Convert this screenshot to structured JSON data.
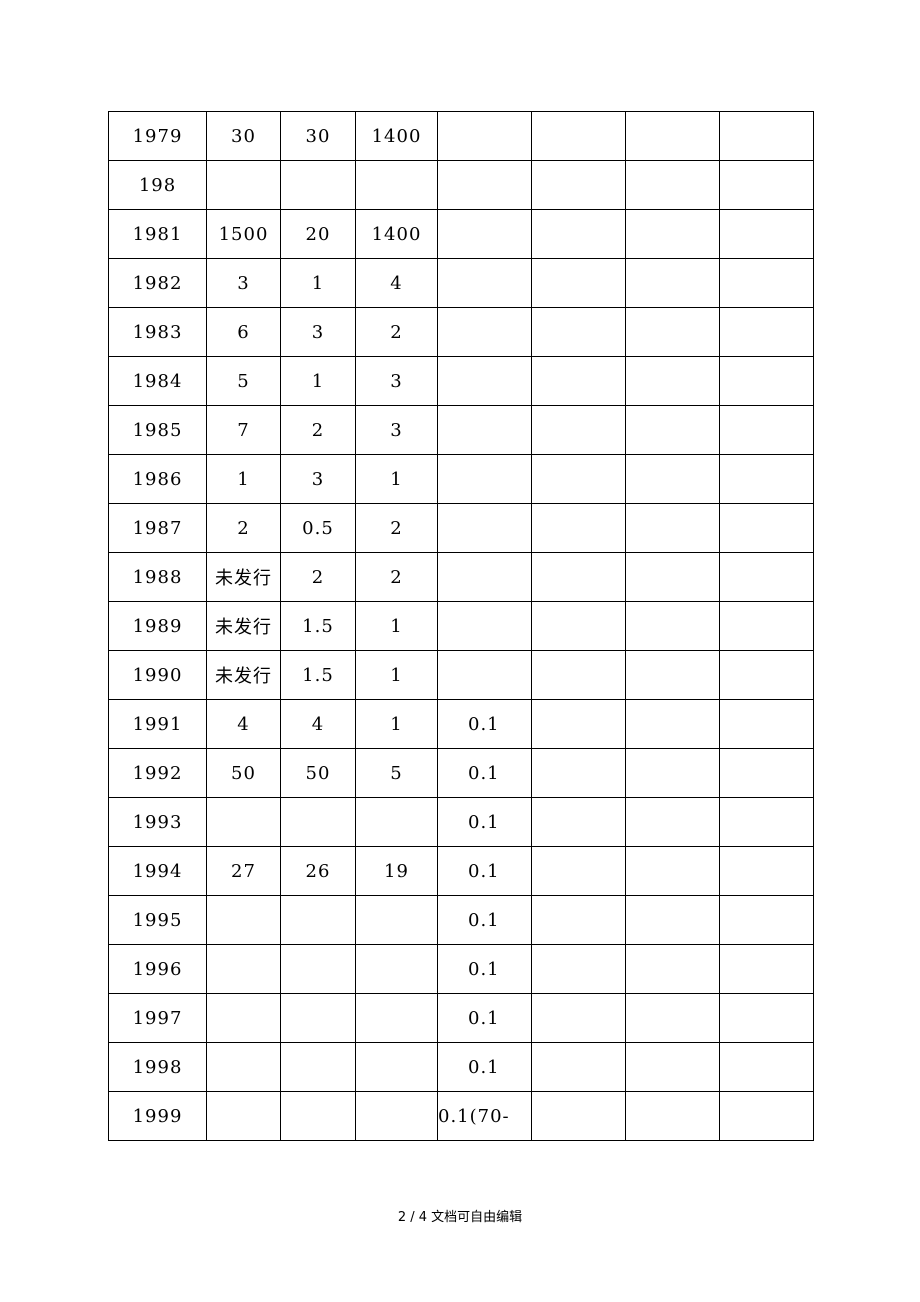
{
  "table": {
    "rows": [
      [
        "1979",
        "30",
        "30",
        "1400",
        "",
        "",
        "",
        ""
      ],
      [
        "198",
        "",
        "",
        "",
        "",
        "",
        "",
        ""
      ],
      [
        "1981",
        "1500",
        "20",
        "1400",
        "",
        "",
        "",
        ""
      ],
      [
        "1982",
        "3",
        "1",
        "4",
        "",
        "",
        "",
        ""
      ],
      [
        "1983",
        "6",
        "3",
        "2",
        "",
        "",
        "",
        ""
      ],
      [
        "1984",
        "5",
        "1",
        "3",
        "",
        "",
        "",
        ""
      ],
      [
        "1985",
        "7",
        "2",
        "3",
        "",
        "",
        "",
        ""
      ],
      [
        "1986",
        "1",
        "3",
        "1",
        "",
        "",
        "",
        ""
      ],
      [
        "1987",
        "2",
        "0.5",
        "2",
        "",
        "",
        "",
        ""
      ],
      [
        "1988",
        "未发行",
        "2",
        "2",
        "",
        "",
        "",
        ""
      ],
      [
        "1989",
        "未发行",
        "1.5",
        "1",
        "",
        "",
        "",
        ""
      ],
      [
        "1990",
        "未发行",
        "1.5",
        "1",
        "",
        "",
        "",
        ""
      ],
      [
        "1991",
        "4",
        "4",
        "1",
        "0.1",
        "",
        "",
        ""
      ],
      [
        "1992",
        "50",
        "50",
        "5",
        "0.1",
        "",
        "",
        ""
      ],
      [
        "1993",
        "",
        "",
        "",
        "0.1",
        "",
        "",
        ""
      ],
      [
        "1994",
        "27",
        "26",
        "19",
        "0.1",
        "",
        "",
        ""
      ],
      [
        "1995",
        "",
        "",
        "",
        "0.1",
        "",
        "",
        ""
      ],
      [
        "1996",
        "",
        "",
        "",
        "0.1",
        "",
        "",
        ""
      ],
      [
        "1997",
        "",
        "",
        "",
        "0.1",
        "",
        "",
        ""
      ],
      [
        "1998",
        "",
        "",
        "",
        "0.1",
        "",
        "",
        ""
      ],
      [
        "1999",
        "",
        "",
        "",
        "0.1(70-",
        "",
        "",
        ""
      ]
    ]
  },
  "footer": {
    "text": "2 / 4 文档可自由编辑"
  }
}
